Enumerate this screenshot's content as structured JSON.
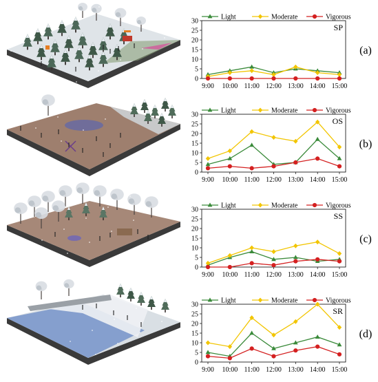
{
  "colors": {
    "light": "#3a8a3a",
    "moderate": "#f2c500",
    "vigorous": "#d42020",
    "ground_brown": "#9e7f6e",
    "ground_side": "#4a4a4a",
    "ice_blue": "#6f8fc8",
    "snow": "#eef1f4",
    "tree_green": "#3f5f4f"
  },
  "chart_data": [
    {
      "type": "line",
      "panel_label": "(a)",
      "space_code": "SP",
      "scene": "snowy-pine-park",
      "categories": [
        "9:00",
        "10:00",
        "11:00",
        "12:00",
        "13:00",
        "14:00",
        "15:00"
      ],
      "series": [
        {
          "name": "Light",
          "values": [
            2,
            4,
            6,
            3,
            5,
            4,
            3
          ],
          "color": "#3a8a3a",
          "marker": "triangle"
        },
        {
          "name": "Moderate",
          "values": [
            1,
            3,
            4,
            2,
            6,
            3,
            2
          ],
          "color": "#f2c500",
          "marker": "diamond"
        },
        {
          "name": "Vigorous",
          "values": [
            0,
            0,
            0,
            0,
            0,
            0,
            0
          ],
          "color": "#d42020",
          "marker": "circle"
        }
      ],
      "ylim": [
        0,
        30
      ],
      "yticks": [
        0,
        5,
        10,
        15,
        20,
        25,
        30
      ],
      "legend": "top"
    },
    {
      "type": "line",
      "panel_label": "(b)",
      "space_code": "OS",
      "scene": "open-plaza",
      "categories": [
        "9:00",
        "10:00",
        "11:00",
        "12:00",
        "13:00",
        "14:00",
        "15:00"
      ],
      "series": [
        {
          "name": "Light",
          "values": [
            4,
            7,
            14,
            4,
            5,
            17,
            7
          ],
          "color": "#3a8a3a",
          "marker": "triangle"
        },
        {
          "name": "Moderate",
          "values": [
            7,
            11,
            21,
            18,
            16,
            26,
            13
          ],
          "color": "#f2c500",
          "marker": "diamond"
        },
        {
          "name": "Vigorous",
          "values": [
            2,
            3,
            2,
            3,
            5,
            7,
            3
          ],
          "color": "#d42020",
          "marker": "circle"
        }
      ],
      "ylim": [
        0,
        30
      ],
      "yticks": [
        0,
        5,
        10,
        15,
        20,
        25,
        30
      ],
      "legend": "top"
    },
    {
      "type": "line",
      "panel_label": "(c)",
      "space_code": "SS",
      "scene": "semi-open-grove",
      "categories": [
        "9:00",
        "10:00",
        "11:00",
        "12:00",
        "13:00",
        "14:00",
        "15:00"
      ],
      "series": [
        {
          "name": "Light",
          "values": [
            1,
            5,
            8,
            4,
            5,
            3,
            4
          ],
          "color": "#3a8a3a",
          "marker": "triangle"
        },
        {
          "name": "Moderate",
          "values": [
            2,
            6,
            10,
            8,
            11,
            13,
            7
          ],
          "color": "#f2c500",
          "marker": "diamond"
        },
        {
          "name": "Vigorous",
          "values": [
            0,
            0,
            2,
            1,
            3,
            4,
            3
          ],
          "color": "#d42020",
          "marker": "circle"
        }
      ],
      "ylim": [
        0,
        30
      ],
      "yticks": [
        0,
        5,
        10,
        15,
        20,
        25,
        30
      ],
      "legend": "top"
    },
    {
      "type": "line",
      "panel_label": "(d)",
      "space_code": "SR",
      "scene": "frozen-river-bank",
      "categories": [
        "9:00",
        "10:00",
        "11:00",
        "12:00",
        "13:00",
        "14:00",
        "15:00"
      ],
      "series": [
        {
          "name": "Light",
          "values": [
            5,
            3,
            15,
            7,
            10,
            13,
            9
          ],
          "color": "#3a8a3a",
          "marker": "triangle"
        },
        {
          "name": "Moderate",
          "values": [
            10,
            8,
            23,
            14,
            21,
            30,
            18
          ],
          "color": "#f2c500",
          "marker": "diamond"
        },
        {
          "name": "Vigorous",
          "values": [
            3,
            2,
            7,
            3,
            6,
            8,
            4
          ],
          "color": "#d42020",
          "marker": "circle"
        }
      ],
      "ylim": [
        0,
        30
      ],
      "yticks": [
        0,
        5,
        10,
        15,
        20,
        25,
        30
      ],
      "legend": "top"
    }
  ]
}
